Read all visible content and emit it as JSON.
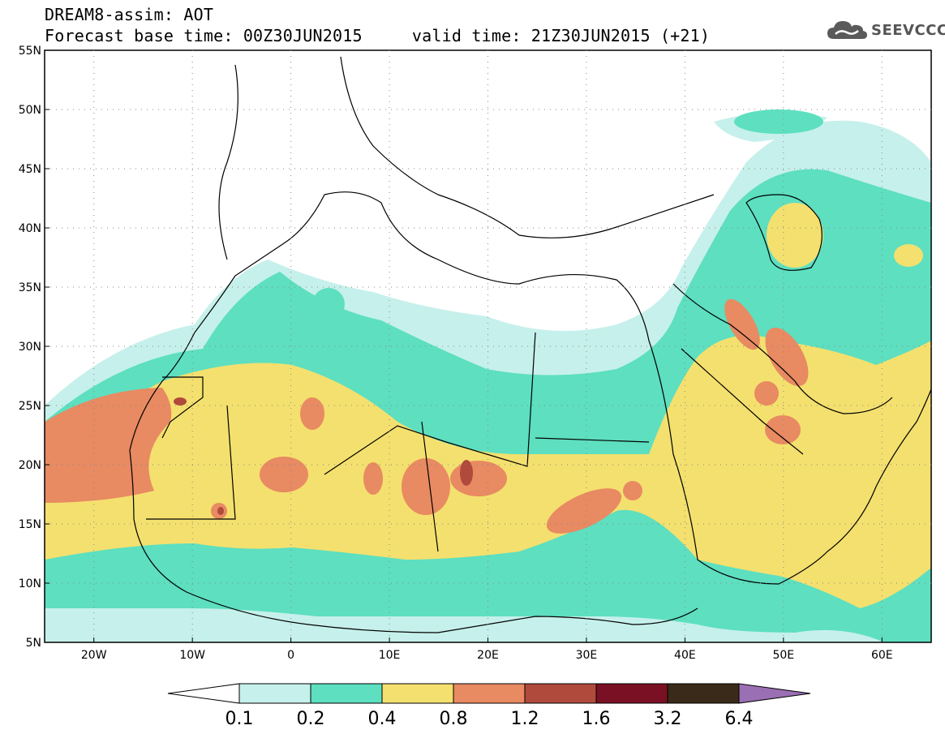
{
  "header": {
    "line1": "DREAM8-assim: AOT",
    "line2": "Forecast base time: 00Z30JUN2015     valid time: 21Z30JUN2015 (+21)"
  },
  "logo": {
    "text": "SEEVCCC",
    "icon": "cloud-icon",
    "color": "#5a5a5a"
  },
  "map": {
    "variable": "AOT",
    "lon_range": [
      -25,
      65
    ],
    "lat_range": [
      5,
      55
    ],
    "grid": true,
    "lat_ticks": [
      "5N",
      "10N",
      "15N",
      "20N",
      "25N",
      "30N",
      "35N",
      "40N",
      "45N",
      "50N",
      "55N"
    ],
    "lon_ticks": [
      "20W",
      "10W",
      "0",
      "10E",
      "20E",
      "30E",
      "40E",
      "50E",
      "60E"
    ]
  },
  "colorbar": {
    "labels": [
      "0.1",
      "0.2",
      "0.4",
      "0.8",
      "1.2",
      "1.6",
      "3.2",
      "6.4"
    ],
    "colors": [
      "#c6f0eb",
      "#5ddfc0",
      "#f4e06e",
      "#e88a62",
      "#b04a3c",
      "#7a1023",
      "#3a2a1a",
      "#9b6fb3"
    ],
    "under_color": "#ffffff",
    "over_color": "#9b6fb3"
  }
}
